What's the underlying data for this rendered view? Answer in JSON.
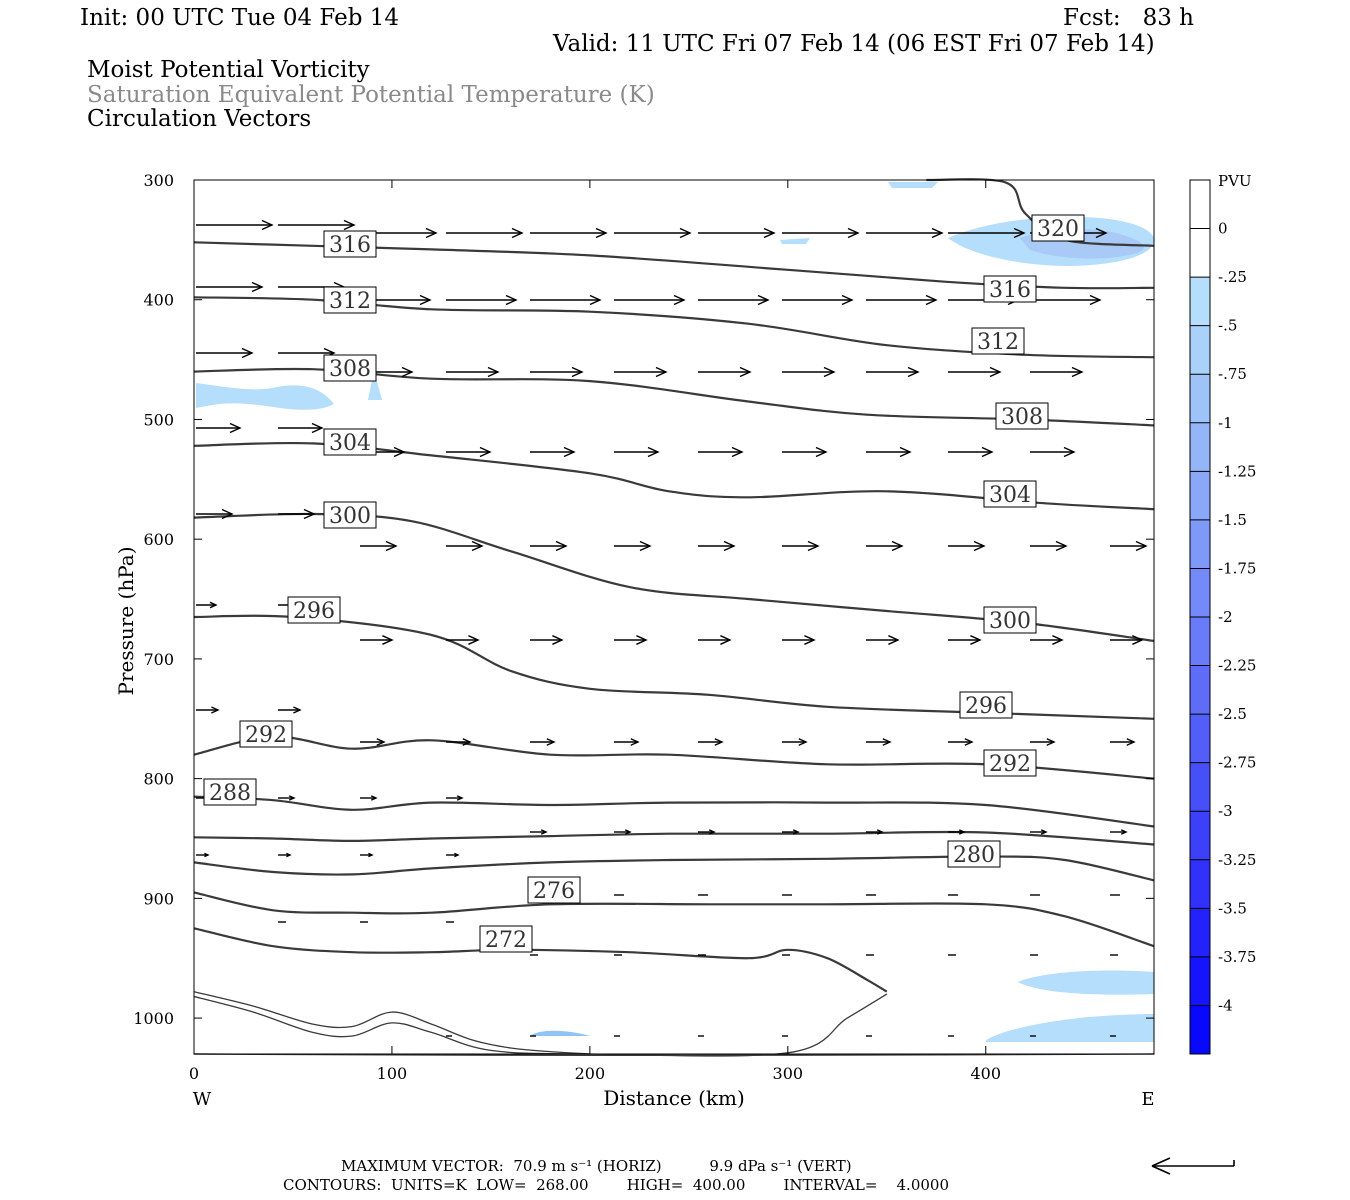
{
  "header": {
    "init": "Init: 00 UTC Tue 04 Feb 14",
    "fcst": "Fcst:   83 h",
    "valid": "Valid: 11 UTC Fri 07 Feb 14 (06 EST Fri 07 Feb 14)",
    "line1": "Moist Potential Vorticity",
    "line2": "Saturation Equivalent Potential Temperature (K)",
    "line3": "Circulation Vectors"
  },
  "footer": {
    "max_vector": "MAXIMUM VECTOR:  70.9 m s⁻¹ (HORIZ)          9.9 dPa s⁻¹ (VERT)",
    "contours": "CONTOURS:  UNITS=K  LOW=  268.00        HIGH=  400.00        INTERVAL=    4.0000"
  },
  "colors": {
    "contour": "#3a3a3a",
    "pv_light": "#b4defb",
    "pv_mid": "#8fc4f5"
  },
  "chart_data": {
    "type": "cross-section",
    "xlabel": "Distance (km)",
    "ylabel": "Pressure (hPa)",
    "xlim": [
      0,
      485
    ],
    "ylim": [
      300,
      1030
    ],
    "x_ticks": [
      "0",
      "100",
      "200",
      "300",
      "400"
    ],
    "y_ticks": [
      "300",
      "400",
      "500",
      "600",
      "700",
      "800",
      "900",
      "1000"
    ],
    "x_end_labels": {
      "left": "W",
      "right": "E"
    },
    "contour_labels": [
      "316",
      "312",
      "308",
      "304",
      "300",
      "296",
      "292",
      "288",
      "320",
      "316",
      "312",
      "308",
      "304",
      "300",
      "296",
      "292",
      "280",
      "276",
      "272"
    ],
    "colorbar": {
      "unit": "PVU",
      "labels": [
        "0",
        "-.25",
        "-.5",
        "-.75",
        "-1",
        "-1.25",
        "-1.5",
        "-1.75",
        "-2",
        "-2.25",
        "-2.5",
        "-2.75",
        "-3",
        "-3.25",
        "-3.5",
        "-3.75",
        "-4"
      ],
      "colors": [
        "#ffffff",
        "#ffffff",
        "#b4defb",
        "#a9d1fa",
        "#9ec3f9",
        "#94b6f8",
        "#8aa7f8",
        "#7f99f8",
        "#748af8",
        "#697bf8",
        "#5e6cf8",
        "#535ef8",
        "#474ff9",
        "#3c40f9",
        "#3131fa",
        "#2422fb",
        "#1614fc",
        "#0808fd"
      ]
    },
    "series": [
      {
        "name": "316",
        "x": [
          0,
          60,
          120,
          200,
          300,
          380,
          440,
          485
        ],
        "y": [
          352,
          355,
          358,
          363,
          375,
          385,
          390,
          390
        ]
      },
      {
        "name": "312",
        "x": [
          0,
          60,
          120,
          200,
          280,
          350,
          420,
          485
        ],
        "y": [
          398,
          400,
          408,
          410,
          420,
          438,
          446,
          448
        ]
      },
      {
        "name": "308",
        "x": [
          0,
          60,
          120,
          200,
          280,
          340,
          420,
          485
        ],
        "y": [
          460,
          458,
          466,
          468,
          485,
          496,
          500,
          505
        ]
      },
      {
        "name": "304",
        "x": [
          0,
          60,
          120,
          200,
          240,
          280,
          350,
          430,
          485
        ],
        "y": [
          522,
          520,
          530,
          545,
          560,
          565,
          560,
          570,
          575
        ]
      },
      {
        "name": "300",
        "x": [
          0,
          60,
          110,
          160,
          220,
          280,
          350,
          420,
          485
        ],
        "y": [
          582,
          579,
          585,
          610,
          640,
          650,
          660,
          670,
          685
        ]
      },
      {
        "name": "296",
        "x": [
          0,
          50,
          120,
          160,
          200,
          260,
          320,
          400,
          485
        ],
        "y": [
          665,
          665,
          680,
          710,
          725,
          730,
          740,
          745,
          750
        ]
      },
      {
        "name": "292",
        "x": [
          0,
          40,
          80,
          120,
          180,
          240,
          320,
          400,
          485
        ],
        "y": [
          780,
          765,
          775,
          768,
          780,
          780,
          788,
          788,
          800
        ]
      },
      {
        "name": "288",
        "x": [
          0,
          40,
          80,
          120,
          180,
          240,
          320,
          400,
          485
        ],
        "y": [
          815,
          818,
          826,
          820,
          822,
          820,
          820,
          822,
          840
        ]
      },
      {
        "name": "284",
        "x": [
          0,
          40,
          80,
          120,
          180,
          240,
          320,
          400,
          485
        ],
        "y": [
          849,
          850,
          852,
          850,
          848,
          846,
          846,
          845,
          855
        ]
      },
      {
        "name": "280",
        "x": [
          0,
          40,
          80,
          120,
          180,
          240,
          320,
          400,
          440,
          485
        ],
        "y": [
          870,
          878,
          880,
          875,
          870,
          868,
          867,
          865,
          868,
          885
        ]
      },
      {
        "name": "276",
        "x": [
          0,
          40,
          80,
          120,
          180,
          260,
          320,
          400,
          440,
          485
        ],
        "y": [
          895,
          910,
          912,
          912,
          905,
          905,
          905,
          905,
          915,
          940
        ]
      },
      {
        "name": "272",
        "x": [
          0,
          40,
          80,
          120,
          160,
          220,
          280,
          300,
          320,
          340,
          350
        ],
        "y": [
          925,
          940,
          945,
          945,
          943,
          945,
          950,
          943,
          950,
          968,
          978
        ]
      },
      {
        "name": "268a",
        "x": [
          0,
          30,
          60,
          80,
          100,
          120,
          140,
          160,
          180,
          200
        ],
        "y": [
          978,
          990,
          1005,
          1007,
          995,
          1005,
          1018,
          1025,
          1028,
          1030
        ]
      },
      {
        "name": "268b",
        "x": [
          0,
          30,
          60,
          80,
          100,
          120,
          150,
          200,
          300,
          330,
          350
        ],
        "y": [
          982,
          995,
          1012,
          1015,
          1004,
          1012,
          1027,
          1030,
          1029,
          1000,
          980
        ]
      },
      {
        "name": "surface",
        "x": [
          0,
          150,
          300,
          485
        ],
        "y": [
          1030,
          1031,
          1031,
          1030
        ]
      },
      {
        "name": "320",
        "x": [
          370,
          410,
          420,
          440,
          485
        ],
        "y": [
          300,
          302,
          328,
          350,
          355
        ]
      }
    ]
  }
}
